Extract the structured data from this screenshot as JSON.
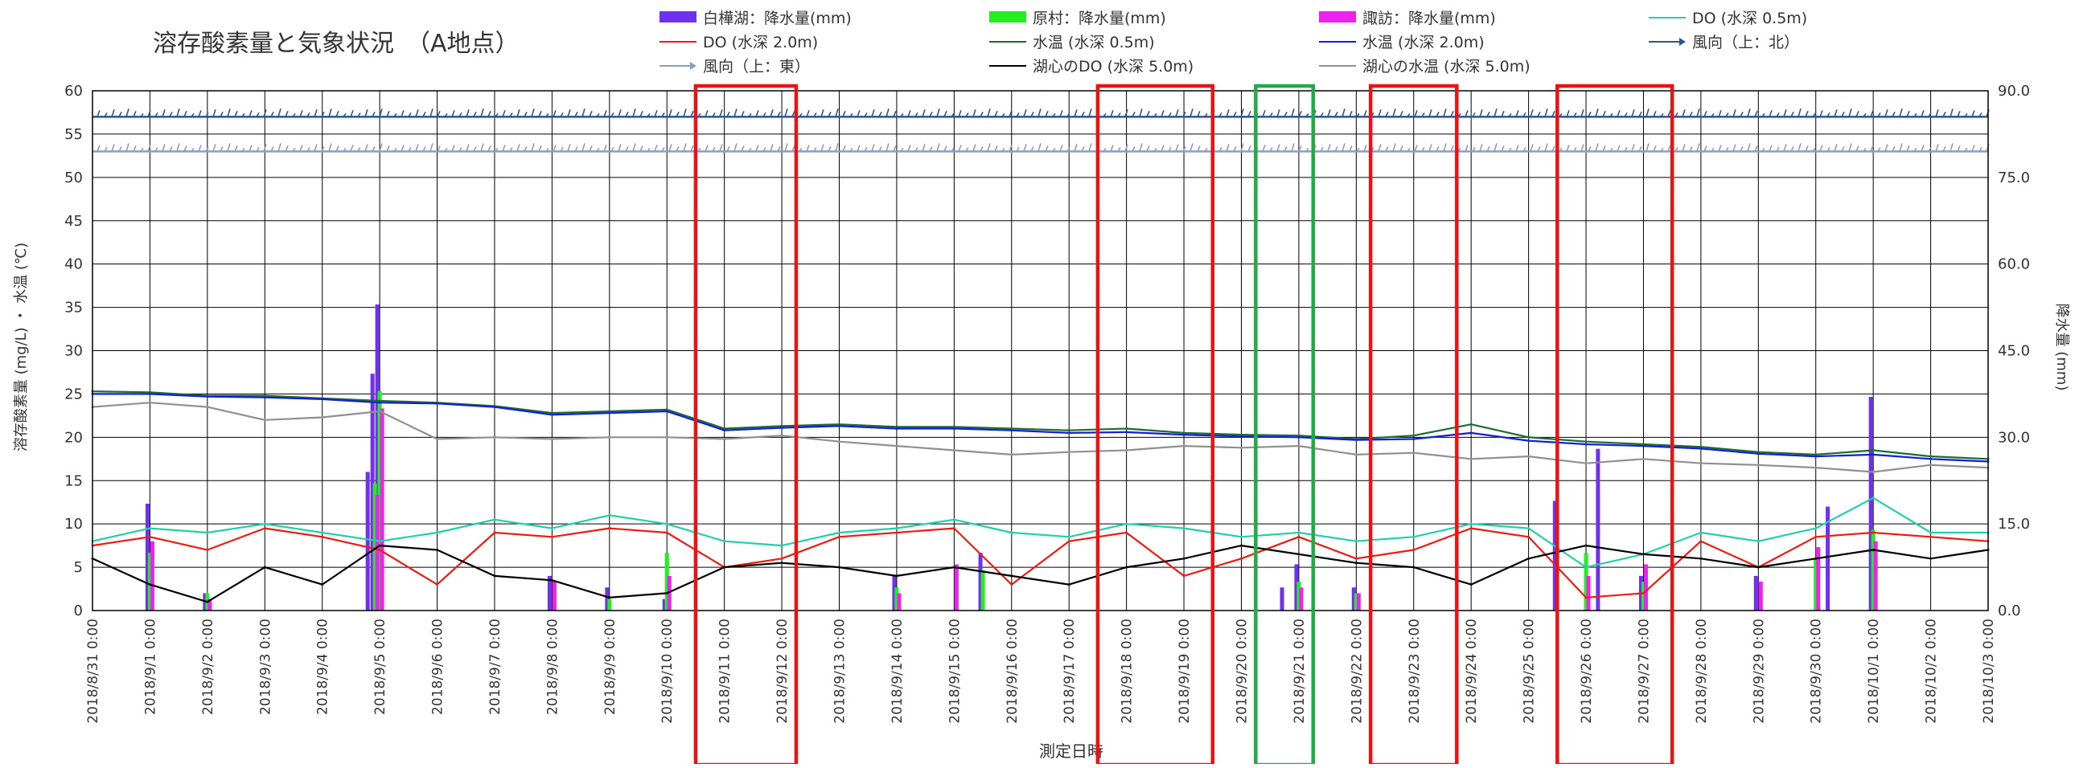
{
  "chart_data": {
    "type": "line",
    "title": "溶存酸素量と気象状況　（A地点）",
    "xlabel": "測定日時",
    "ylabel_left": "溶存酸素量 (mg/L) ・ 水温 (℃)",
    "ylabel_right": "降水量 (mm)",
    "ylim_left": [
      0,
      60
    ],
    "ylim_right": [
      0,
      90
    ],
    "yticks_left": [
      "0",
      "5",
      "10",
      "15",
      "20",
      "25",
      "30",
      "35",
      "40",
      "45",
      "50",
      "55",
      "60"
    ],
    "yticks_right": [
      "0.0",
      "15.0",
      "30.0",
      "45.0",
      "60.0",
      "75.0",
      "90.0"
    ],
    "x_range": [
      "2018-08-31",
      "2018-10-03"
    ],
    "x_ticks": [
      "2018/8/31 0:00",
      "2018/9/1 0:00",
      "2018/9/2 0:00",
      "2018/9/3 0:00",
      "2018/9/4 0:00",
      "2018/9/5 0:00",
      "2018/9/6 0:00",
      "2018/9/7 0:00",
      "2018/9/8 0:00",
      "2018/9/9 0:00",
      "2018/9/10 0:00",
      "2018/9/11 0:00",
      "2018/9/12 0:00",
      "2018/9/13 0:00",
      "2018/9/14 0:00",
      "2018/9/15 0:00",
      "2018/9/16 0:00",
      "2018/9/17 0:00",
      "2018/9/18 0:00",
      "2018/9/19 0:00",
      "2018/9/20 0:00",
      "2018/9/21 0:00",
      "2018/9/22 0:00",
      "2018/9/23 0:00",
      "2018/9/24 0:00",
      "2018/9/25 0:00",
      "2018/9/26 0:00",
      "2018/9/27 0:00",
      "2018/9/28 0:00",
      "2018/9/29 0:00",
      "2018/9/30 0:00",
      "2018/10/1 0:00",
      "2018/10/2 0:00",
      "2018/10/3 0:00"
    ],
    "grid": true,
    "legend_position": "top",
    "legend": [
      {
        "label": "白樺湖：降水量(mm)",
        "kind": "bar",
        "color": "#7030f0"
      },
      {
        "label": "原村：降水量(mm)",
        "kind": "bar",
        "color": "#22ee22"
      },
      {
        "label": "諏訪：降水量(mm)",
        "kind": "bar",
        "color": "#ee22ee"
      },
      {
        "label": "DO (水深 0.5m)",
        "kind": "line",
        "color": "#20d0a8"
      },
      {
        "label": "DO (水深 2.0m)",
        "kind": "line",
        "color": "#ee1c10"
      },
      {
        "label": "水温 (水深 0.5m)",
        "kind": "line",
        "color": "#1e6b2e"
      },
      {
        "label": "水温 (水深 2.0m)",
        "kind": "line",
        "color": "#1020d8"
      },
      {
        "label": "風向（上：北）",
        "kind": "arrow",
        "color": "#2e5591"
      },
      {
        "label": "風向（上：東）",
        "kind": "arrow",
        "color": "#8a9fbf"
      },
      {
        "label": "湖心のDO (水深 5.0m)",
        "kind": "line",
        "color": "#000000"
      },
      {
        "label": "湖心の水温 (水深 5.0m)",
        "kind": "line",
        "color": "#909090"
      }
    ],
    "series": [
      {
        "name": "水温 (水深 0.5m)",
        "axis": "left",
        "color": "#1e6b2e",
        "x": [
          "2018-08-31",
          "2018-09-01",
          "2018-09-02",
          "2018-09-03",
          "2018-09-04",
          "2018-09-05",
          "2018-09-06",
          "2018-09-07",
          "2018-09-08",
          "2018-09-09",
          "2018-09-10",
          "2018-09-11",
          "2018-09-12",
          "2018-09-13",
          "2018-09-14",
          "2018-09-15",
          "2018-09-16",
          "2018-09-17",
          "2018-09-18",
          "2018-09-19",
          "2018-09-20",
          "2018-09-21",
          "2018-09-22",
          "2018-09-23",
          "2018-09-24",
          "2018-09-25",
          "2018-09-26",
          "2018-09-27",
          "2018-09-28",
          "2018-09-29",
          "2018-09-30",
          "2018-10-01",
          "2018-10-02",
          "2018-10-03"
        ],
        "y": [
          25.3,
          25.2,
          24.8,
          24.8,
          24.5,
          24.2,
          24.0,
          23.6,
          22.8,
          23.0,
          23.2,
          21.0,
          21.3,
          21.5,
          21.2,
          21.2,
          21.0,
          20.8,
          21.0,
          20.5,
          20.3,
          20.2,
          19.8,
          20.2,
          21.5,
          20.0,
          19.5,
          19.2,
          18.9,
          18.3,
          18.0,
          18.5,
          17.8,
          17.5
        ]
      },
      {
        "name": "水温 (水深 2.0m)",
        "axis": "left",
        "color": "#1020d8",
        "x": [
          "2018-08-31",
          "2018-09-01",
          "2018-09-02",
          "2018-09-03",
          "2018-09-04",
          "2018-09-05",
          "2018-09-06",
          "2018-09-07",
          "2018-09-08",
          "2018-09-09",
          "2018-09-10",
          "2018-09-11",
          "2018-09-12",
          "2018-09-13",
          "2018-09-14",
          "2018-09-15",
          "2018-09-16",
          "2018-09-17",
          "2018-09-18",
          "2018-09-19",
          "2018-09-20",
          "2018-09-21",
          "2018-09-22",
          "2018-09-23",
          "2018-09-24",
          "2018-09-25",
          "2018-09-26",
          "2018-09-27",
          "2018-09-28",
          "2018-09-29",
          "2018-09-30",
          "2018-10-01",
          "2018-10-02",
          "2018-10-03"
        ],
        "y": [
          25.0,
          25.0,
          24.7,
          24.6,
          24.4,
          24.0,
          23.9,
          23.5,
          22.6,
          22.8,
          23.0,
          20.8,
          21.1,
          21.3,
          21.0,
          21.0,
          20.8,
          20.5,
          20.6,
          20.3,
          20.1,
          20.0,
          19.7,
          19.8,
          20.5,
          19.6,
          19.2,
          19.0,
          18.7,
          18.1,
          17.8,
          18.0,
          17.5,
          17.2
        ]
      },
      {
        "name": "湖心の水温 (水深 5.0m)",
        "axis": "left",
        "color": "#909090",
        "x": [
          "2018-08-31",
          "2018-09-01",
          "2018-09-02",
          "2018-09-03",
          "2018-09-04",
          "2018-09-05",
          "2018-09-06",
          "2018-09-07",
          "2018-09-08",
          "2018-09-09",
          "2018-09-10",
          "2018-09-11",
          "2018-09-12",
          "2018-09-13",
          "2018-09-14",
          "2018-09-15",
          "2018-09-16",
          "2018-09-17",
          "2018-09-18",
          "2018-09-19",
          "2018-09-20",
          "2018-09-21",
          "2018-09-22",
          "2018-09-23",
          "2018-09-24",
          "2018-09-25",
          "2018-09-26",
          "2018-09-27",
          "2018-09-28",
          "2018-09-29",
          "2018-09-30",
          "2018-10-01",
          "2018-10-02",
          "2018-10-03"
        ],
        "y": [
          23.5,
          24.0,
          23.5,
          22.0,
          22.3,
          23.0,
          19.8,
          20.0,
          19.8,
          20.0,
          20.0,
          19.8,
          20.2,
          19.5,
          19.0,
          18.5,
          18.0,
          18.3,
          18.5,
          19.0,
          18.8,
          19.0,
          18.0,
          18.2,
          17.5,
          17.8,
          17.0,
          17.5,
          17.0,
          16.8,
          16.5,
          16.0,
          16.8,
          16.5
        ]
      },
      {
        "name": "DO (水深 0.5m)",
        "axis": "left",
        "color": "#20d0a8",
        "x": [
          "2018-08-31",
          "2018-09-01",
          "2018-09-02",
          "2018-09-03",
          "2018-09-04",
          "2018-09-05",
          "2018-09-06",
          "2018-09-07",
          "2018-09-08",
          "2018-09-09",
          "2018-09-10",
          "2018-09-11",
          "2018-09-12",
          "2018-09-13",
          "2018-09-14",
          "2018-09-15",
          "2018-09-16",
          "2018-09-17",
          "2018-09-18",
          "2018-09-19",
          "2018-09-20",
          "2018-09-21",
          "2018-09-22",
          "2018-09-23",
          "2018-09-24",
          "2018-09-25",
          "2018-09-26",
          "2018-09-27",
          "2018-09-28",
          "2018-09-29",
          "2018-09-30",
          "2018-10-01",
          "2018-10-02",
          "2018-10-03"
        ],
        "y": [
          8.0,
          9.5,
          9.0,
          10.0,
          9.0,
          8.0,
          9.0,
          10.5,
          9.5,
          11.0,
          10.0,
          8.0,
          7.5,
          9.0,
          9.5,
          10.5,
          9.0,
          8.5,
          10.0,
          9.5,
          8.5,
          9.0,
          8.0,
          8.5,
          10.0,
          9.5,
          5.0,
          6.5,
          9.0,
          8.0,
          9.5,
          13.0,
          9.0,
          9.0
        ]
      },
      {
        "name": "DO (水深 2.0m)",
        "axis": "left",
        "color": "#ee1c10",
        "x": [
          "2018-08-31",
          "2018-09-01",
          "2018-09-02",
          "2018-09-03",
          "2018-09-04",
          "2018-09-05",
          "2018-09-06",
          "2018-09-07",
          "2018-09-08",
          "2018-09-09",
          "2018-09-10",
          "2018-09-11",
          "2018-09-12",
          "2018-09-13",
          "2018-09-14",
          "2018-09-15",
          "2018-09-16",
          "2018-09-17",
          "2018-09-18",
          "2018-09-19",
          "2018-09-20",
          "2018-09-21",
          "2018-09-22",
          "2018-09-23",
          "2018-09-24",
          "2018-09-25",
          "2018-09-26",
          "2018-09-27",
          "2018-09-28",
          "2018-09-29",
          "2018-09-30",
          "2018-10-01",
          "2018-10-02",
          "2018-10-03"
        ],
        "y": [
          7.5,
          8.5,
          7.0,
          9.5,
          8.5,
          7.0,
          3.0,
          9.0,
          8.5,
          9.5,
          9.0,
          5.0,
          6.0,
          8.5,
          9.0,
          9.5,
          3.0,
          8.0,
          9.0,
          4.0,
          6.0,
          8.5,
          6.0,
          7.0,
          9.5,
          8.5,
          1.5,
          2.0,
          8.0,
          5.0,
          8.5,
          9.0,
          8.5,
          8.0
        ]
      },
      {
        "name": "湖心のDO (水深 5.0m)",
        "axis": "left",
        "color": "#000000",
        "x": [
          "2018-08-31",
          "2018-09-01",
          "2018-09-02",
          "2018-09-03",
          "2018-09-04",
          "2018-09-05",
          "2018-09-06",
          "2018-09-07",
          "2018-09-08",
          "2018-09-09",
          "2018-09-10",
          "2018-09-11",
          "2018-09-12",
          "2018-09-13",
          "2018-09-14",
          "2018-09-15",
          "2018-09-16",
          "2018-09-17",
          "2018-09-18",
          "2018-09-19",
          "2018-09-20",
          "2018-09-21",
          "2018-09-22",
          "2018-09-23",
          "2018-09-24",
          "2018-09-25",
          "2018-09-26",
          "2018-09-27",
          "2018-09-28",
          "2018-09-29",
          "2018-09-30",
          "2018-10-01",
          "2018-10-02",
          "2018-10-03"
        ],
        "y": [
          6.0,
          3.0,
          1.0,
          5.0,
          3.0,
          7.5,
          7.0,
          4.0,
          3.5,
          1.5,
          2.0,
          5.0,
          5.5,
          5.0,
          4.0,
          5.0,
          4.0,
          3.0,
          5.0,
          6.0,
          7.5,
          6.5,
          5.5,
          5.0,
          3.0,
          6.0,
          7.5,
          6.5,
          6.0,
          5.0,
          6.0,
          7.0,
          6.0,
          7.0
        ]
      }
    ],
    "wind_direction_bands": [
      {
        "name": "風向（上：北）",
        "axis": "left",
        "baseline": 57.0,
        "color": "#2e5591"
      },
      {
        "name": "風向（上：東）",
        "axis": "left",
        "baseline": 53.0,
        "color": "#8a9fbf"
      }
    ],
    "precipitation": [
      {
        "name": "白樺湖：降水量(mm)",
        "axis": "right",
        "color": "#7030f0",
        "x": [
          "2018-09-01",
          "2018-09-02",
          "2018-09-04 20:00",
          "2018-09-04 22:00",
          "2018-09-05",
          "2018-09-08",
          "2018-09-09",
          "2018-09-10",
          "2018-09-14",
          "2018-09-15 12:00",
          "2018-09-20 18:00",
          "2018-09-21",
          "2018-09-22",
          "2018-09-25 12:00",
          "2018-09-26 06:00",
          "2018-09-27",
          "2018-09-29",
          "2018-09-30 06:00",
          "2018-10-01"
        ],
        "y": [
          18.5,
          3.0,
          24.0,
          41.0,
          53.0,
          6.0,
          4.0,
          2.0,
          6.0,
          10.0,
          4.0,
          8.0,
          4.0,
          19.0,
          28.0,
          6.0,
          6.0,
          18.0,
          37.0
        ]
      },
      {
        "name": "原村：降水量(mm)",
        "axis": "right",
        "color": "#22ee22",
        "x": [
          "2018-09-01",
          "2018-09-02",
          "2018-09-04 22:00",
          "2018-09-05",
          "2018-09-09",
          "2018-09-10",
          "2018-09-14",
          "2018-09-15 12:00",
          "2018-09-21",
          "2018-09-22",
          "2018-09-26",
          "2018-09-27",
          "2018-09-30",
          "2018-10-01"
        ],
        "y": [
          10.0,
          3.0,
          22.0,
          38.0,
          2.0,
          10.0,
          4.0,
          7.0,
          5.0,
          3.0,
          10.0,
          5.0,
          9.0,
          14.0
        ]
      },
      {
        "name": "諏訪：降水量(mm)",
        "axis": "right",
        "color": "#ee22ee",
        "x": [
          "2018-09-01",
          "2018-09-02",
          "2018-09-04 22:00",
          "2018-09-05",
          "2018-09-08",
          "2018-09-10",
          "2018-09-14",
          "2018-09-15",
          "2018-09-21",
          "2018-09-22",
          "2018-09-26",
          "2018-09-27",
          "2018-09-29",
          "2018-09-30",
          "2018-10-01"
        ],
        "y": [
          12.0,
          2.0,
          20.0,
          35.0,
          5.0,
          6.0,
          3.0,
          8.0,
          4.0,
          3.0,
          6.0,
          8.0,
          5.0,
          11.0,
          12.0
        ]
      }
    ],
    "annotations": [
      {
        "kind": "highlight-box",
        "color": "#ee1111",
        "x_start": "2018-09-10 12:00",
        "x_end": "2018-09-12 06:00"
      },
      {
        "kind": "highlight-box",
        "color": "#ee1111",
        "x_start": "2018-09-17 12:00",
        "x_end": "2018-09-19 12:00"
      },
      {
        "kind": "highlight-box",
        "color": "#22aa44",
        "x_start": "2018-09-20 06:00",
        "x_end": "2018-09-21 06:00"
      },
      {
        "kind": "highlight-box",
        "color": "#ee1111",
        "x_start": "2018-09-22 06:00",
        "x_end": "2018-09-23 18:00"
      },
      {
        "kind": "highlight-box",
        "color": "#ee1111",
        "x_start": "2018-09-25 12:00",
        "x_end": "2018-09-27 12:00"
      }
    ]
  }
}
